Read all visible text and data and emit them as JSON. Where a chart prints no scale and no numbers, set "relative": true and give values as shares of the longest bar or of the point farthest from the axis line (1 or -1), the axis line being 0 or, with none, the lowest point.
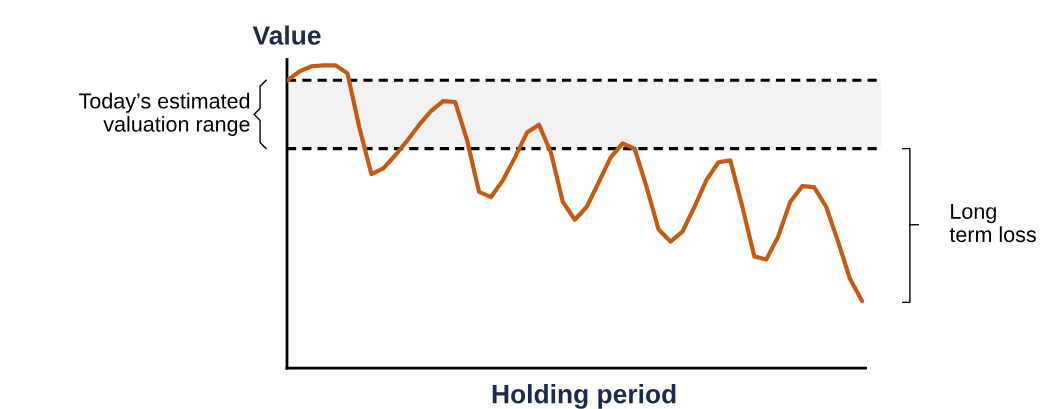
{
  "chart_data": {
    "type": "line",
    "relative": true,
    "xlabel": "Holding period",
    "ylabel": "Value",
    "categories": [
      null,
      null,
      null,
      null,
      null,
      null,
      null,
      null,
      null,
      null,
      null,
      null,
      null,
      null,
      null,
      null,
      null,
      null,
      null,
      null,
      null,
      null,
      null,
      null,
      null,
      null,
      null,
      null,
      null,
      null,
      null,
      null,
      null,
      null,
      null,
      null,
      null,
      null,
      null,
      null,
      null,
      null,
      null,
      null,
      null,
      null,
      null,
      null,
      null
    ],
    "series": [
      {
        "color": "#c55a11",
        "values": [
          0.951,
          0.98,
          0.997,
          1.0,
          1.0,
          0.974,
          0.794,
          0.641,
          0.66,
          0.703,
          0.752,
          0.804,
          0.85,
          0.882,
          0.879,
          0.752,
          0.582,
          0.565,
          0.621,
          0.696,
          0.778,
          0.804,
          0.712,
          0.549,
          0.49,
          0.533,
          0.614,
          0.696,
          0.742,
          0.725,
          0.598,
          0.458,
          0.418,
          0.451,
          0.533,
          0.621,
          0.68,
          0.686,
          0.533,
          0.369,
          0.359,
          0.435,
          0.549,
          0.601,
          0.598,
          0.533,
          0.418,
          0.294,
          0.222
        ]
      }
    ],
    "ref_lines": [
      {
        "axis": "y",
        "value": 0.951,
        "color": "#000000",
        "line_style": "dashed"
      },
      {
        "axis": "y",
        "value": 0.725,
        "color": "#000000",
        "line_style": "dashed"
      }
    ],
    "bands": [
      {
        "axis": "y",
        "from": 0.725,
        "to": 0.951,
        "color": "#f2f2f2"
      }
    ],
    "annotations": [
      "Today’s estimated\nvaluation range",
      "Long\nterm loss"
    ]
  }
}
